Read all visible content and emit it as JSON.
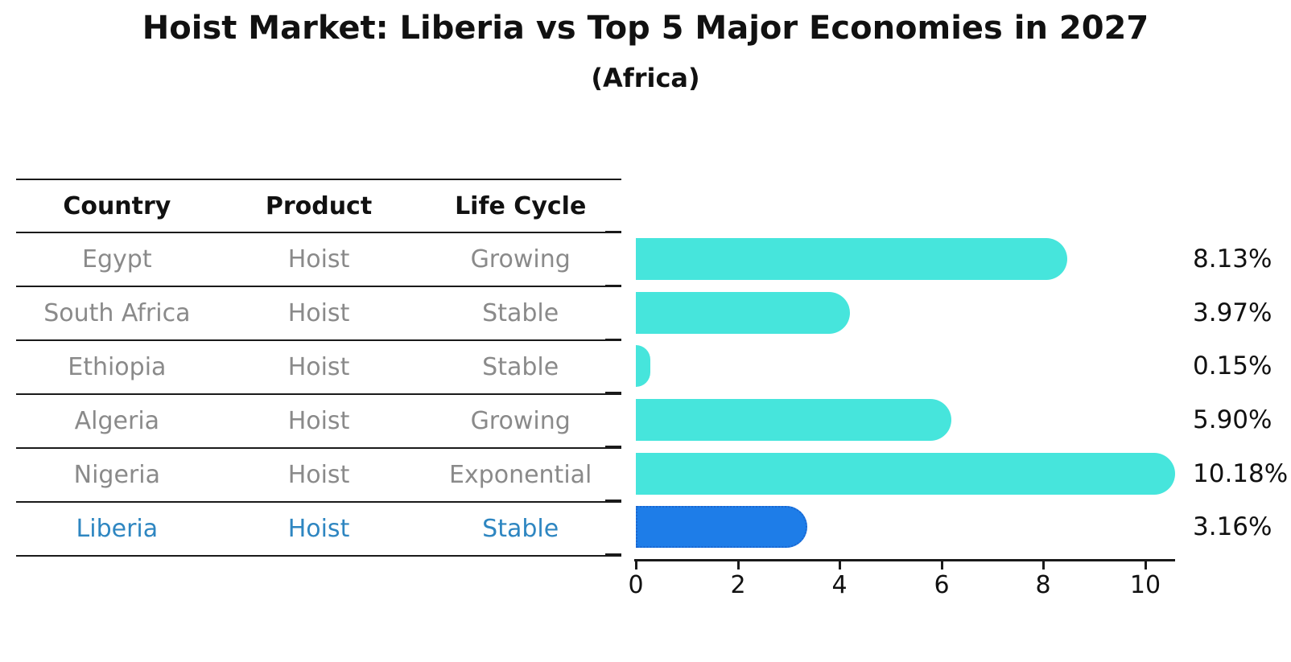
{
  "header": {
    "title": "Hoist Market: Liberia vs Top 5 Major Economies in 2027",
    "subtitle": "(Africa)"
  },
  "table": {
    "columns": [
      "Country",
      "Product",
      "Life Cycle"
    ],
    "rows": [
      {
        "country": "Egypt",
        "product": "Hoist",
        "life_cycle": "Growing",
        "highlighted": false
      },
      {
        "country": "South Africa",
        "product": "Hoist",
        "life_cycle": "Stable",
        "highlighted": false
      },
      {
        "country": "Ethiopia",
        "product": "Hoist",
        "life_cycle": "Stable",
        "highlighted": false
      },
      {
        "country": "Algeria",
        "product": "Hoist",
        "life_cycle": "Growing",
        "highlighted": false
      },
      {
        "country": "Nigeria",
        "product": "Hoist",
        "life_cycle": "Exponential",
        "highlighted": false
      },
      {
        "country": "Liberia",
        "product": "Hoist",
        "life_cycle": "Stable",
        "highlighted": true
      }
    ]
  },
  "chart_data": {
    "type": "bar",
    "orientation": "horizontal",
    "title": "Hoist Market: Liberia vs Top 5 Major Economies in 2027",
    "subtitle": "(Africa)",
    "categories": [
      "Egypt",
      "South Africa",
      "Ethiopia",
      "Algeria",
      "Nigeria",
      "Liberia"
    ],
    "values": [
      8.13,
      3.97,
      0.15,
      5.9,
      10.18,
      3.16
    ],
    "labels": [
      "8.13%",
      "3.97%",
      "0.15%",
      "5.90%",
      "10.18%",
      "3.16%"
    ],
    "unit": "%",
    "xticks": [
      0,
      2,
      4,
      6,
      8,
      10
    ],
    "xlim": [
      0,
      10.6
    ],
    "grid": false,
    "legend": "none",
    "highlight_index": 5,
    "colors": {
      "bar": "#46E5DC",
      "highlight_bar": "#1E7DE8",
      "highlight_border": "#1A66D0",
      "highlight_text": "#2E86C1",
      "row_text": "#8a8a8a",
      "text": "#111111"
    }
  }
}
